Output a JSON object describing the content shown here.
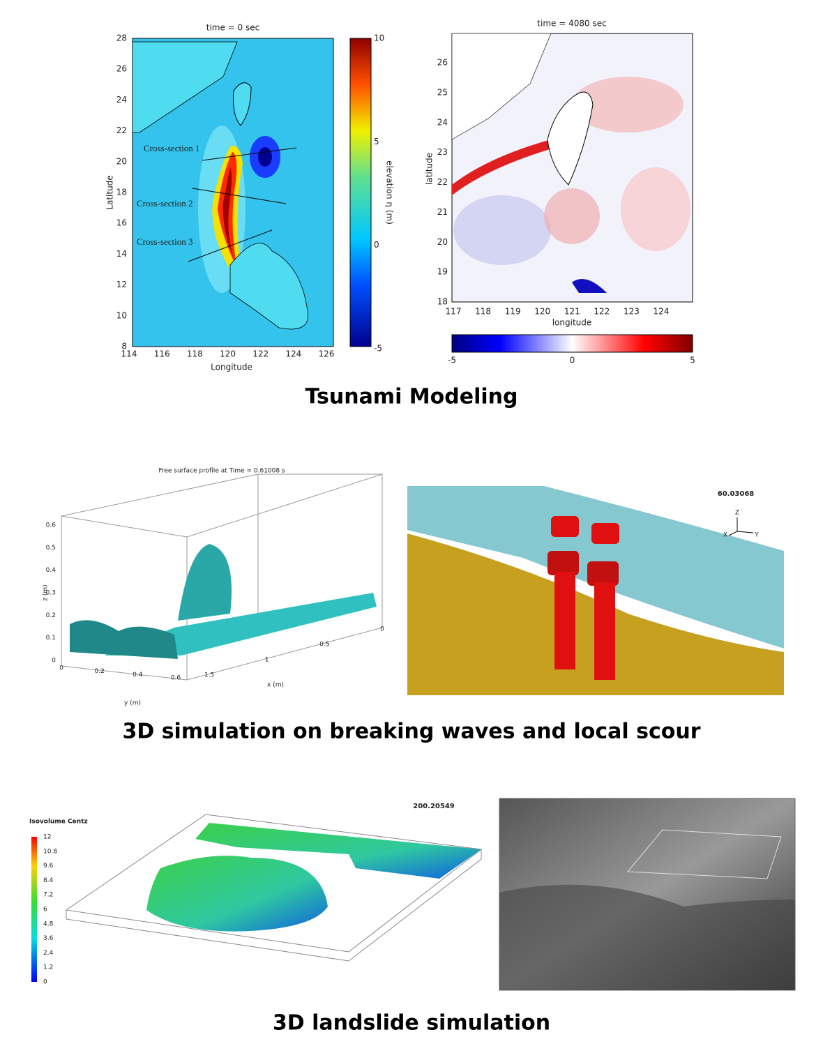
{
  "sections": [
    {
      "caption": "Tsunami Modeling",
      "figures": [
        {
          "title": "time = 0 sec",
          "x_label": "Longitude",
          "y_label": "Latitude",
          "x_ticks": [
            114,
            116,
            118,
            120,
            122,
            124,
            126
          ],
          "y_ticks": [
            8,
            10,
            12,
            14,
            16,
            18,
            20,
            22,
            24,
            26,
            28
          ],
          "colorbar_label": "elevation η (m)",
          "colorbar_ticks": [
            10,
            5,
            0,
            -5
          ],
          "annotations": [
            "Cross-section 1",
            "Cross-section 2",
            "Cross-section 3"
          ]
        },
        {
          "title": "time = 4080 sec",
          "x_label": "longitude",
          "y_label": "latitude",
          "x_ticks": [
            117,
            118,
            119,
            120,
            121,
            122,
            123,
            124
          ],
          "y_ticks": [
            18,
            19,
            20,
            21,
            22,
            23,
            24,
            25,
            26
          ],
          "colorbar_ticks": [
            -5,
            0,
            5
          ]
        }
      ]
    },
    {
      "caption": "3D simulation on breaking waves and local scour",
      "figures": [
        {
          "title": "Free surface profile at Time = 0.61008 s",
          "z_label": "z (m)",
          "y_label": "y (m)",
          "x_label": "x (m)",
          "z_ticks": [
            0,
            0.1,
            0.2,
            0.3,
            0.4,
            0.5,
            0.6
          ],
          "y_ticks": [
            0,
            0.2,
            0.4,
            0.6
          ],
          "x_ticks": [
            0,
            0.5,
            1,
            1.5
          ]
        },
        {
          "time_stamp": "60.03068",
          "axis_labels": [
            "Z",
            "X",
            "Y"
          ]
        }
      ]
    },
    {
      "caption": "3D landslide simulation",
      "figures": [
        {
          "legend_title": "Isovolume Centz",
          "legend_ticks": [
            12,
            10.8,
            9.6,
            8.4,
            7.2,
            6,
            4.8,
            3.6,
            2.4,
            1.2,
            0
          ],
          "time_stamp": "200.20549"
        }
      ]
    }
  ]
}
